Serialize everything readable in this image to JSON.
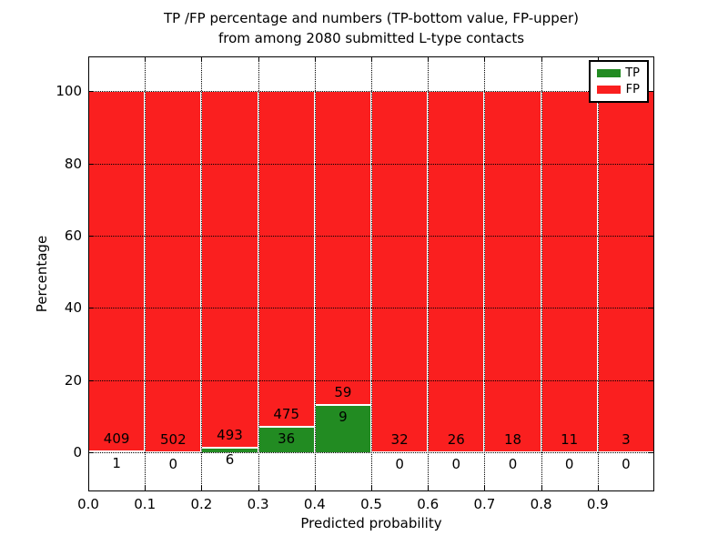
{
  "chart_data": {
    "type": "bar",
    "stacked": true,
    "title_lines": [
      "TP /FP percentage and numbers (TP-bottom value, FP-upper)",
      "from among 2080 submitted L-type contacts"
    ],
    "xlabel": "Predicted probability",
    "ylabel": "Percentage",
    "total_submitted": 2080,
    "bin_width": 0.1,
    "x_tick_labels": [
      "0.0",
      "0.1",
      "0.2",
      "0.3",
      "0.4",
      "0.5",
      "0.6",
      "0.7",
      "0.8",
      "0.9"
    ],
    "y_tick_values": [
      0,
      20,
      40,
      60,
      80,
      100
    ],
    "xlim": [
      0.0,
      1.0
    ],
    "ylim": [
      -10.8,
      109.6
    ],
    "grid": "dotted",
    "legend_position": "upper right",
    "series": [
      {
        "name": "TP",
        "color": "#228b22",
        "counts": [
          1,
          0,
          6,
          36,
          9,
          0,
          0,
          0,
          0,
          0
        ]
      },
      {
        "name": "FP",
        "color": "#fa1f1f",
        "counts": [
          409,
          502,
          493,
          475,
          59,
          32,
          26,
          18,
          11,
          3
        ]
      }
    ],
    "tp_percentages": [
      0.24,
      0.0,
      1.2,
      7.05,
      13.24,
      0.0,
      0.0,
      0.0,
      0.0,
      0.0
    ]
  }
}
